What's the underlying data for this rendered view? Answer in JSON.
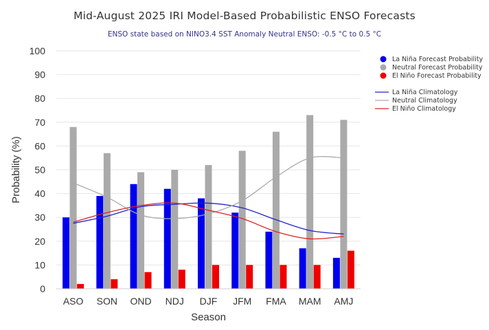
{
  "chart_data": {
    "type": "bar",
    "title": "Mid-August 2025 IRI Model-Based Probabilistic ENSO Forecasts",
    "subtitle": "ENSO state based on NINO3.4 SST Anomaly Neutral ENSO: -0.5 °C to 0.5 °C",
    "xlabel": "Season",
    "ylabel": "Probability (%)",
    "ylim": [
      0,
      100
    ],
    "yticks": [
      0,
      10,
      20,
      30,
      40,
      50,
      60,
      70,
      80,
      90,
      100
    ],
    "grid": true,
    "legend_position": "right",
    "categories": [
      "ASO",
      "SON",
      "OND",
      "NDJ",
      "DJF",
      "JFM",
      "FMA",
      "MAM",
      "AMJ"
    ],
    "series": [
      {
        "name": "La Niña Forecast Probability",
        "kind": "bar",
        "color": "#0000ee",
        "values": [
          30,
          39,
          44,
          42,
          38,
          32,
          24,
          17,
          13
        ]
      },
      {
        "name": "Neutral Forecast Probability",
        "kind": "bar",
        "color": "#aaaaaa",
        "values": [
          68,
          57,
          49,
          50,
          52,
          58,
          66,
          73,
          71
        ]
      },
      {
        "name": "El Niño Forecast Probability",
        "kind": "bar",
        "color": "#ee0000",
        "values": [
          2,
          4,
          7,
          8,
          10,
          10,
          10,
          10,
          16
        ]
      },
      {
        "name": "La Niña Climatology",
        "kind": "line",
        "color": "#2222cc",
        "values": [
          27.5,
          30.5,
          34.5,
          35.5,
          36,
          34,
          29,
          24.5,
          23
        ]
      },
      {
        "name": "Neutral Climatology",
        "kind": "line",
        "color": "#aaaaaa",
        "values": [
          44.5,
          38.5,
          31,
          29.5,
          31.5,
          37,
          47,
          55,
          55
        ]
      },
      {
        "name": "El Niño Climatology",
        "kind": "line",
        "color": "#dd2222",
        "values": [
          28,
          32,
          35,
          36,
          33,
          29.5,
          24,
          21,
          22
        ]
      }
    ]
  }
}
